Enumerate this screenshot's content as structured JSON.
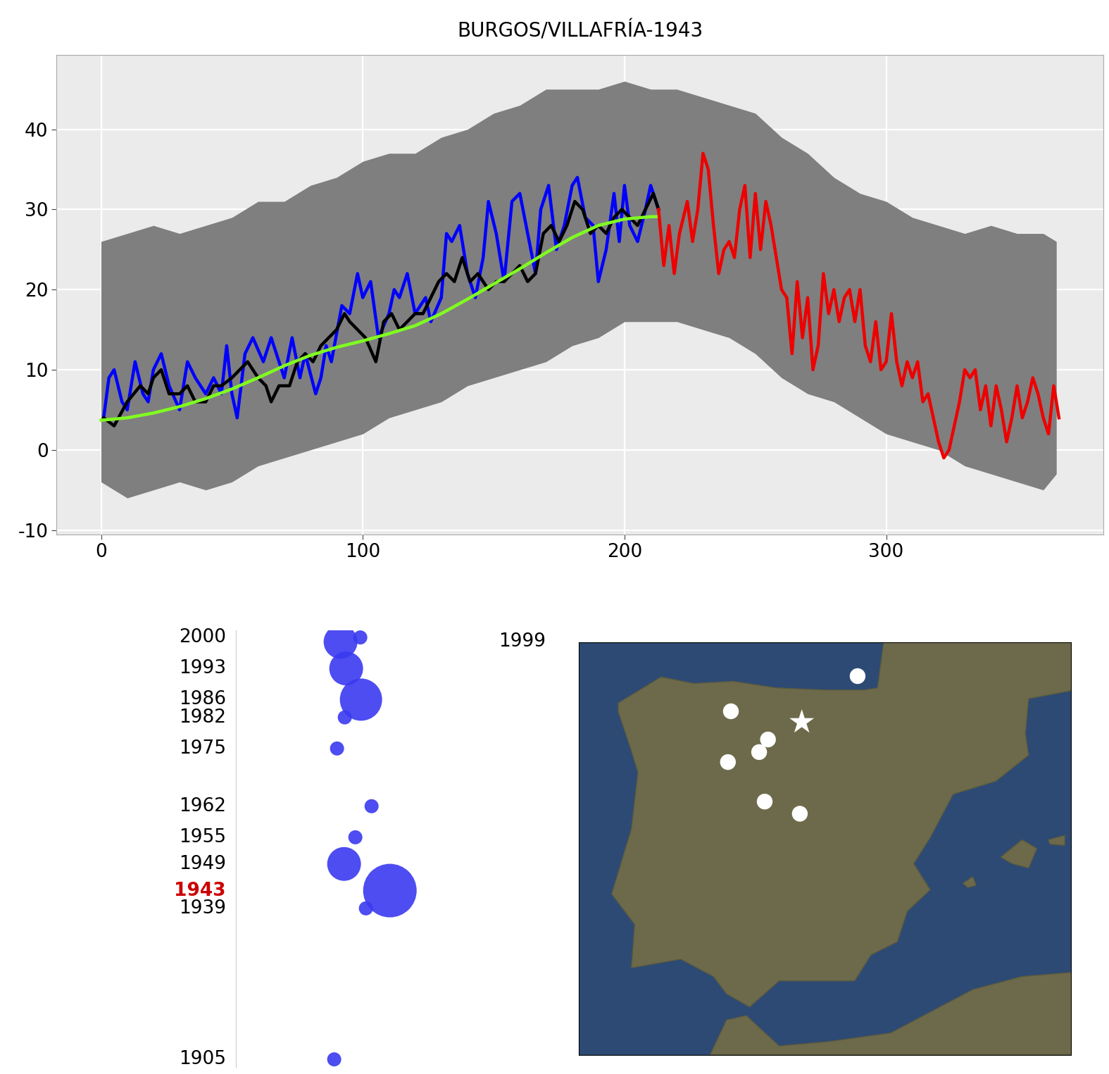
{
  "chart_data": [
    {
      "type": "line",
      "title": "BURGOS/VILLAFRÍA-1943",
      "grid": true,
      "xlim": [
        -17,
        383
      ],
      "ylim": [
        -10.6,
        49.3
      ],
      "xticks": [
        0,
        100,
        200,
        300
      ],
      "yticks": [
        -10,
        0,
        10,
        20,
        30,
        40
      ],
      "series": [
        {
          "type": "band",
          "color": "#7f7f7f",
          "x": [
            0,
            10,
            20,
            30,
            40,
            50,
            60,
            70,
            80,
            90,
            100,
            110,
            120,
            130,
            140,
            150,
            160,
            170,
            180,
            190,
            200,
            210,
            220,
            230,
            240,
            250,
            260,
            270,
            280,
            290,
            300,
            310,
            320,
            330,
            340,
            350,
            360,
            365
          ],
          "low": [
            -4,
            -6,
            -5,
            -4,
            -5,
            -4,
            -2,
            -1,
            0,
            1,
            2,
            4,
            5,
            6,
            8,
            9,
            10,
            11,
            13,
            14,
            16,
            16,
            16,
            15,
            14,
            12,
            9,
            7,
            6,
            4,
            2,
            1,
            0,
            -2,
            -3,
            -4,
            -5,
            -3
          ],
          "high": [
            26,
            27,
            28,
            27,
            28,
            29,
            31,
            31,
            33,
            34,
            36,
            37,
            37,
            39,
            40,
            42,
            43,
            45,
            45,
            45,
            46,
            45,
            45,
            44,
            43,
            42,
            39,
            37,
            34,
            32,
            31,
            29,
            28,
            27,
            28,
            27,
            27,
            26
          ]
        },
        {
          "type": "line",
          "color": "#0000ff",
          "x": [
            1,
            3,
            5,
            8,
            10,
            13,
            16,
            18,
            20,
            23,
            26,
            30,
            33,
            36,
            40,
            43,
            46,
            48,
            50,
            52,
            55,
            58,
            62,
            65,
            68,
            70,
            73,
            76,
            78,
            82,
            84,
            86,
            88,
            92,
            95,
            98,
            100,
            103,
            106,
            110,
            112,
            114,
            117,
            120,
            124,
            126,
            130,
            132,
            134,
            137,
            140,
            143,
            146,
            148,
            151,
            154,
            157,
            160,
            163,
            166,
            168,
            171,
            174,
            177,
            180,
            182,
            185,
            188,
            190,
            193,
            196,
            198,
            200,
            202,
            205,
            208,
            210,
            213
          ],
          "values": [
            4,
            9,
            10,
            6,
            5,
            11,
            7,
            6,
            10,
            12,
            8,
            5,
            11,
            9,
            7,
            9,
            7,
            13,
            7,
            4,
            12,
            14,
            11,
            14,
            11,
            9,
            14,
            9,
            12,
            7,
            9,
            13,
            11,
            18,
            17,
            22,
            19,
            21,
            14,
            17,
            20,
            19,
            22,
            17,
            19,
            16,
            19,
            27,
            26,
            28,
            22,
            19,
            24,
            31,
            27,
            21,
            31,
            32,
            27,
            22,
            30,
            33,
            25,
            28,
            33,
            34,
            29,
            28,
            21,
            25,
            32,
            26,
            33,
            28,
            26,
            30,
            33,
            30
          ]
        },
        {
          "type": "line",
          "color": "#000000",
          "x": [
            1,
            5,
            10,
            15,
            18,
            20,
            23,
            26,
            30,
            33,
            36,
            40,
            43,
            46,
            50,
            53,
            56,
            60,
            63,
            65,
            68,
            72,
            75,
            78,
            81,
            84,
            87,
            90,
            93,
            95,
            98,
            101,
            105,
            108,
            111,
            114,
            117,
            120,
            123,
            126,
            129,
            132,
            135,
            138,
            141,
            144,
            148,
            151,
            154,
            157,
            160,
            163,
            166,
            169,
            172,
            175,
            178,
            181,
            184,
            187,
            190,
            193,
            196,
            199,
            202,
            205,
            208,
            211,
            213
          ],
          "values": [
            4,
            3,
            6,
            8,
            7,
            9,
            10,
            7,
            7,
            8,
            6,
            6,
            8,
            8,
            9,
            10,
            11,
            9,
            8,
            6,
            8,
            8,
            11,
            12,
            11,
            13,
            14,
            15,
            17,
            16,
            15,
            14,
            11,
            16,
            17,
            15,
            16,
            17,
            17,
            19,
            21,
            22,
            21,
            24,
            21,
            22,
            20,
            21,
            21,
            22,
            23,
            21,
            22,
            27,
            28,
            26,
            28,
            31,
            30,
            27,
            28,
            27,
            29,
            30,
            29,
            28,
            30,
            32,
            30
          ]
        },
        {
          "type": "line",
          "color": "#80ff20",
          "x": [
            0,
            10,
            20,
            30,
            40,
            50,
            60,
            70,
            80,
            90,
            100,
            110,
            120,
            130,
            140,
            150,
            160,
            170,
            180,
            190,
            200,
            210,
            213
          ],
          "values": [
            3.7,
            4,
            4.6,
            5.4,
            6.4,
            7.6,
            9,
            10.5,
            11.8,
            12.8,
            13.6,
            14.5,
            15.5,
            17,
            18.8,
            20.7,
            22.6,
            24.6,
            26.5,
            28,
            28.8,
            29.1,
            29.1
          ]
        },
        {
          "type": "line",
          "color": "#ee0000",
          "x": [
            213,
            215,
            217,
            219,
            221,
            224,
            226,
            228,
            230,
            232,
            234,
            236,
            238,
            240,
            242,
            244,
            246,
            248,
            250,
            252,
            254,
            256,
            258,
            260,
            262,
            264,
            266,
            268,
            270,
            272,
            274,
            276,
            278,
            280,
            282,
            284,
            286,
            288,
            290,
            292,
            294,
            296,
            298,
            300,
            302,
            304,
            306,
            308,
            310,
            312,
            314,
            316,
            318,
            320,
            322,
            324,
            326,
            328,
            330,
            332,
            334,
            336,
            338,
            340,
            342,
            344,
            346,
            348,
            350,
            352,
            354,
            356,
            358,
            360,
            362,
            364,
            366
          ],
          "values": [
            30,
            23,
            28,
            22,
            27,
            31,
            26,
            30,
            37,
            35,
            28,
            22,
            25,
            26,
            24,
            30,
            33,
            24,
            32,
            25,
            31,
            28,
            24,
            20,
            19,
            12,
            21,
            14,
            19,
            10,
            13,
            22,
            17,
            20,
            16,
            19,
            20,
            16,
            20,
            13,
            11,
            16,
            10,
            11,
            17,
            11,
            8,
            11,
            9,
            11,
            6,
            7,
            4,
            1,
            -1,
            0,
            3,
            6,
            10,
            9,
            10,
            5,
            8,
            3,
            8,
            5,
            1,
            4,
            8,
            4,
            6,
            9,
            7,
            4,
            2,
            8,
            4
          ]
        }
      ]
    },
    {
      "type": "scatter",
      "color": "#3a3af0",
      "tick_labels": "y",
      "xlim": [
        335,
        700
      ],
      "ylim": [
        1903.3,
        2001.6
      ],
      "x": [
        511,
        483,
        491,
        512,
        489,
        478,
        527,
        504,
        488,
        553,
        519,
        474
      ],
      "values": [
        2000,
        1999,
        1993,
        1986,
        1982,
        1975,
        1962,
        1955,
        1949,
        1943,
        1939,
        1905
      ],
      "sizes": [
        5,
        12,
        12,
        15,
        5,
        5,
        5,
        5,
        12,
        19,
        5,
        5
      ],
      "yticks": [
        2000,
        1999,
        1993,
        1986,
        1982,
        1975,
        1962,
        1955,
        1949,
        {
          "value": 1943,
          "label": "1943",
          "color": "#cc0000"
        },
        1939,
        1905
      ]
    },
    {
      "type": "map",
      "tick_labels": false,
      "xlim": [
        -10.5,
        4.5
      ],
      "ylim": [
        35,
        44.5
      ],
      "series": [
        {
          "color": "#ffffff",
          "marker": "circle",
          "x": [
            -2.01,
            -5.87,
            -4.74,
            -5.96,
            -5.01,
            -4.84,
            -3.77
          ],
          "values": [
            43.72,
            42.91,
            42.26,
            41.74,
            41.97,
            40.83,
            40.55
          ]
        },
        {
          "color": "#ffffff",
          "marker": "star",
          "x": [
            -3.71
          ],
          "values": [
            42.66
          ]
        }
      ]
    }
  ]
}
